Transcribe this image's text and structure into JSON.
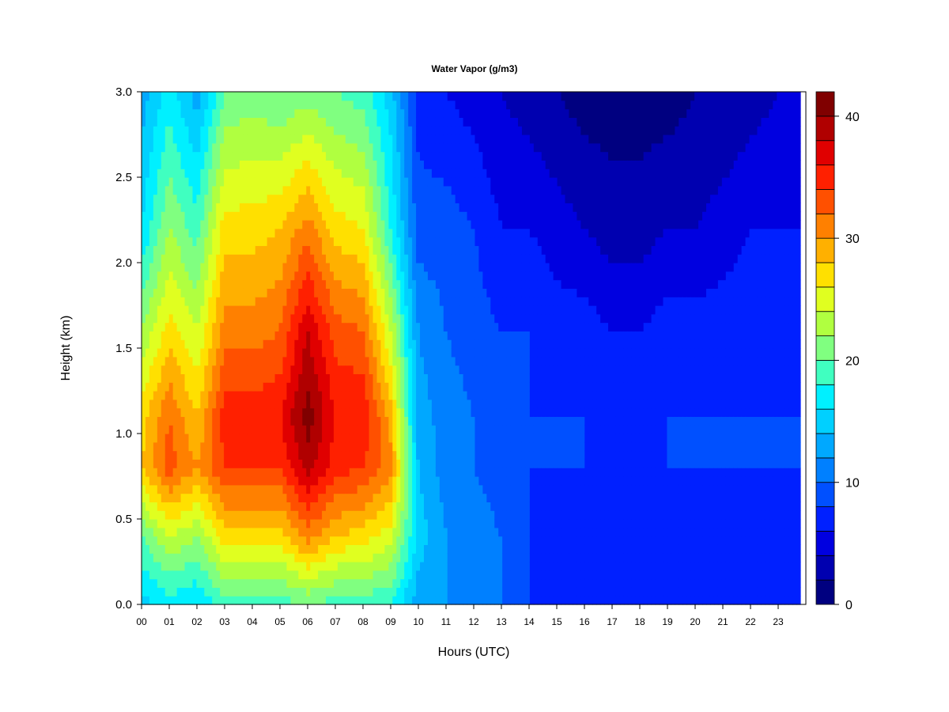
{
  "chart_data": {
    "type": "heatmap",
    "title": "Water Vapor (g/m3)",
    "xlabel": "Hours (UTC)",
    "ylabel": "Height (km)",
    "x_ticks": [
      "00",
      "01",
      "02",
      "03",
      "04",
      "05",
      "06",
      "07",
      "08",
      "09",
      "10",
      "11",
      "12",
      "13",
      "14",
      "15",
      "16",
      "17",
      "18",
      "19",
      "20",
      "21",
      "22",
      "23"
    ],
    "y_ticks": [
      "0.0",
      "0.5",
      "1.0",
      "1.5",
      "2.0",
      "2.5",
      "3.0"
    ],
    "xlim": [
      0,
      24
    ],
    "ylim": [
      0,
      3.0
    ],
    "colorbar": {
      "min": 0,
      "max": 42,
      "step": 2,
      "ticks": [
        "0",
        "10",
        "20",
        "30",
        "40"
      ],
      "tick_values": [
        0,
        10,
        20,
        30,
        40
      ],
      "colors": [
        "#000080",
        "#0000B0",
        "#0000E0",
        "#0020FF",
        "#0050FF",
        "#0080FF",
        "#00A8FF",
        "#00D0FF",
        "#00F0FF",
        "#40FFC0",
        "#80FF80",
        "#B0FF40",
        "#E0FF20",
        "#FFE000",
        "#FFB000",
        "#FF8000",
        "#FF5000",
        "#FF2000",
        "#E00000",
        "#B00000",
        "#800000"
      ]
    },
    "profiles": [
      {
        "hour": 0.0,
        "values": [
          {
            "h": 0.0,
            "v": 15
          },
          {
            "h": 0.4,
            "v": 20
          },
          {
            "h": 0.8,
            "v": 28
          },
          {
            "h": 1.1,
            "v": 27
          },
          {
            "h": 1.6,
            "v": 22
          },
          {
            "h": 2.2,
            "v": 16
          },
          {
            "h": 3.0,
            "v": 13
          }
        ]
      },
      {
        "hour": 1.0,
        "values": [
          {
            "h": 0.0,
            "v": 17
          },
          {
            "h": 0.4,
            "v": 24
          },
          {
            "h": 0.8,
            "v": 33
          },
          {
            "h": 1.1,
            "v": 32
          },
          {
            "h": 1.6,
            "v": 27
          },
          {
            "h": 2.2,
            "v": 22
          },
          {
            "h": 3.0,
            "v": 17
          }
        ]
      },
      {
        "hour": 2.0,
        "values": [
          {
            "h": 0.0,
            "v": 16
          },
          {
            "h": 0.4,
            "v": 22
          },
          {
            "h": 0.8,
            "v": 30
          },
          {
            "h": 1.1,
            "v": 28
          },
          {
            "h": 1.6,
            "v": 24
          },
          {
            "h": 2.2,
            "v": 19
          },
          {
            "h": 3.0,
            "v": 13
          }
        ]
      },
      {
        "hour": 3.0,
        "values": [
          {
            "h": 0.0,
            "v": 19
          },
          {
            "h": 0.4,
            "v": 27
          },
          {
            "h": 0.8,
            "v": 34
          },
          {
            "h": 1.1,
            "v": 35
          },
          {
            "h": 1.6,
            "v": 31
          },
          {
            "h": 2.2,
            "v": 27
          },
          {
            "h": 3.0,
            "v": 20
          }
        ]
      },
      {
        "hour": 4.0,
        "values": [
          {
            "h": 0.0,
            "v": 19
          },
          {
            "h": 0.4,
            "v": 27
          },
          {
            "h": 0.8,
            "v": 34
          },
          {
            "h": 1.1,
            "v": 35
          },
          {
            "h": 1.6,
            "v": 31
          },
          {
            "h": 2.2,
            "v": 27
          },
          {
            "h": 3.0,
            "v": 21
          }
        ]
      },
      {
        "hour": 5.0,
        "values": [
          {
            "h": 0.0,
            "v": 19
          },
          {
            "h": 0.4,
            "v": 27
          },
          {
            "h": 0.8,
            "v": 34
          },
          {
            "h": 1.1,
            "v": 36
          },
          {
            "h": 1.6,
            "v": 32
          },
          {
            "h": 2.2,
            "v": 28
          },
          {
            "h": 3.0,
            "v": 20
          }
        ]
      },
      {
        "hour": 6.0,
        "values": [
          {
            "h": 0.0,
            "v": 20
          },
          {
            "h": 0.4,
            "v": 31
          },
          {
            "h": 0.8,
            "v": 39
          },
          {
            "h": 1.1,
            "v": 41
          },
          {
            "h": 1.6,
            "v": 38
          },
          {
            "h": 2.2,
            "v": 31
          },
          {
            "h": 3.0,
            "v": 21
          }
        ]
      },
      {
        "hour": 7.0,
        "values": [
          {
            "h": 0.0,
            "v": 19
          },
          {
            "h": 0.4,
            "v": 28
          },
          {
            "h": 0.8,
            "v": 35
          },
          {
            "h": 1.1,
            "v": 36
          },
          {
            "h": 1.6,
            "v": 33
          },
          {
            "h": 2.2,
            "v": 27
          },
          {
            "h": 3.0,
            "v": 20
          }
        ]
      },
      {
        "hour": 8.0,
        "values": [
          {
            "h": 0.0,
            "v": 19
          },
          {
            "h": 0.4,
            "v": 27
          },
          {
            "h": 0.8,
            "v": 34
          },
          {
            "h": 1.1,
            "v": 36
          },
          {
            "h": 1.6,
            "v": 32
          },
          {
            "h": 2.2,
            "v": 26
          },
          {
            "h": 3.0,
            "v": 19
          }
        ]
      },
      {
        "hour": 9.0,
        "values": [
          {
            "h": 0.0,
            "v": 18
          },
          {
            "h": 0.4,
            "v": 25
          },
          {
            "h": 0.8,
            "v": 31
          },
          {
            "h": 1.1,
            "v": 29
          },
          {
            "h": 1.6,
            "v": 24
          },
          {
            "h": 2.2,
            "v": 18
          },
          {
            "h": 3.0,
            "v": 15
          }
        ]
      },
      {
        "hour": 10.0,
        "values": [
          {
            "h": 0.0,
            "v": 13
          },
          {
            "h": 0.4,
            "v": 15
          },
          {
            "h": 0.8,
            "v": 14
          },
          {
            "h": 1.1,
            "v": 13
          },
          {
            "h": 1.6,
            "v": 12
          },
          {
            "h": 2.2,
            "v": 9
          },
          {
            "h": 3.0,
            "v": 7
          }
        ]
      },
      {
        "hour": 11.0,
        "values": [
          {
            "h": 0.0,
            "v": 12
          },
          {
            "h": 0.4,
            "v": 12
          },
          {
            "h": 0.8,
            "v": 11
          },
          {
            "h": 1.1,
            "v": 11
          },
          {
            "h": 1.6,
            "v": 10
          },
          {
            "h": 2.2,
            "v": 9
          },
          {
            "h": 3.0,
            "v": 6
          }
        ]
      },
      {
        "hour": 12.0,
        "values": [
          {
            "h": 0.0,
            "v": 11
          },
          {
            "h": 0.4,
            "v": 11
          },
          {
            "h": 0.8,
            "v": 10
          },
          {
            "h": 1.1,
            "v": 10
          },
          {
            "h": 1.6,
            "v": 9
          },
          {
            "h": 2.2,
            "v": 8
          },
          {
            "h": 3.0,
            "v": 5
          }
        ]
      },
      {
        "hour": 13.0,
        "values": [
          {
            "h": 0.0,
            "v": 10
          },
          {
            "h": 0.4,
            "v": 10
          },
          {
            "h": 0.8,
            "v": 9
          },
          {
            "h": 1.1,
            "v": 9
          },
          {
            "h": 1.6,
            "v": 8
          },
          {
            "h": 2.2,
            "v": 6
          },
          {
            "h": 3.0,
            "v": 4
          }
        ]
      },
      {
        "hour": 14.0,
        "values": [
          {
            "h": 0.0,
            "v": 8
          },
          {
            "h": 0.4,
            "v": 8
          },
          {
            "h": 0.8,
            "v": 8
          },
          {
            "h": 1.1,
            "v": 8
          },
          {
            "h": 1.6,
            "v": 8
          },
          {
            "h": 2.2,
            "v": 6
          },
          {
            "h": 3.0,
            "v": 3
          }
        ]
      },
      {
        "hour": 15.0,
        "values": [
          {
            "h": 0.0,
            "v": 7
          },
          {
            "h": 0.4,
            "v": 7
          },
          {
            "h": 0.8,
            "v": 8
          },
          {
            "h": 1.1,
            "v": 8
          },
          {
            "h": 1.6,
            "v": 7
          },
          {
            "h": 2.2,
            "v": 5
          },
          {
            "h": 3.0,
            "v": 2
          }
        ]
      },
      {
        "hour": 16.0,
        "values": [
          {
            "h": 0.0,
            "v": 6
          },
          {
            "h": 0.4,
            "v": 7
          },
          {
            "h": 0.8,
            "v": 8
          },
          {
            "h": 1.1,
            "v": 8
          },
          {
            "h": 1.6,
            "v": 7
          },
          {
            "h": 2.2,
            "v": 4
          },
          {
            "h": 3.0,
            "v": 1
          }
        ]
      },
      {
        "hour": 17.0,
        "values": [
          {
            "h": 0.0,
            "v": 6
          },
          {
            "h": 0.4,
            "v": 7
          },
          {
            "h": 0.8,
            "v": 7
          },
          {
            "h": 1.1,
            "v": 7
          },
          {
            "h": 1.6,
            "v": 6
          },
          {
            "h": 2.2,
            "v": 3
          },
          {
            "h": 3.0,
            "v": 1
          }
        ]
      },
      {
        "hour": 18.0,
        "values": [
          {
            "h": 0.0,
            "v": 6
          },
          {
            "h": 0.4,
            "v": 7
          },
          {
            "h": 0.8,
            "v": 7
          },
          {
            "h": 1.1,
            "v": 7
          },
          {
            "h": 1.6,
            "v": 6
          },
          {
            "h": 2.2,
            "v": 3
          },
          {
            "h": 3.0,
            "v": 1
          }
        ]
      },
      {
        "hour": 19.0,
        "values": [
          {
            "h": 0.0,
            "v": 6
          },
          {
            "h": 0.4,
            "v": 7
          },
          {
            "h": 0.8,
            "v": 8
          },
          {
            "h": 1.1,
            "v": 8
          },
          {
            "h": 1.6,
            "v": 7
          },
          {
            "h": 2.2,
            "v": 4
          },
          {
            "h": 3.0,
            "v": 1
          }
        ]
      },
      {
        "hour": 20.0,
        "values": [
          {
            "h": 0.0,
            "v": 6
          },
          {
            "h": 0.4,
            "v": 7
          },
          {
            "h": 0.8,
            "v": 8
          },
          {
            "h": 1.1,
            "v": 8
          },
          {
            "h": 1.6,
            "v": 7
          },
          {
            "h": 2.2,
            "v": 4
          },
          {
            "h": 3.0,
            "v": 2
          }
        ]
      },
      {
        "hour": 21.0,
        "values": [
          {
            "h": 0.0,
            "v": 6
          },
          {
            "h": 0.4,
            "v": 7
          },
          {
            "h": 0.8,
            "v": 8
          },
          {
            "h": 1.1,
            "v": 8
          },
          {
            "h": 1.6,
            "v": 7
          },
          {
            "h": 2.2,
            "v": 5
          },
          {
            "h": 3.0,
            "v": 2
          }
        ]
      },
      {
        "hour": 22.0,
        "values": [
          {
            "h": 0.0,
            "v": 6
          },
          {
            "h": 0.4,
            "v": 7
          },
          {
            "h": 0.8,
            "v": 8
          },
          {
            "h": 1.1,
            "v": 8
          },
          {
            "h": 1.6,
            "v": 7
          },
          {
            "h": 2.2,
            "v": 6
          },
          {
            "h": 3.0,
            "v": 3
          }
        ]
      },
      {
        "hour": 23.0,
        "values": [
          {
            "h": 0.0,
            "v": 7
          },
          {
            "h": 0.4,
            "v": 7
          },
          {
            "h": 0.8,
            "v": 8
          },
          {
            "h": 1.1,
            "v": 8
          },
          {
            "h": 1.6,
            "v": 7
          },
          {
            "h": 2.2,
            "v": 6
          },
          {
            "h": 3.0,
            "v": 4
          }
        ]
      },
      {
        "hour": 23.8,
        "values": [
          {
            "h": 0.0,
            "v": 7
          },
          {
            "h": 0.4,
            "v": 7
          },
          {
            "h": 0.8,
            "v": 8
          },
          {
            "h": 1.1,
            "v": 8
          },
          {
            "h": 1.6,
            "v": 7
          },
          {
            "h": 2.2,
            "v": 6
          },
          {
            "h": 3.0,
            "v": 4
          }
        ]
      }
    ]
  }
}
